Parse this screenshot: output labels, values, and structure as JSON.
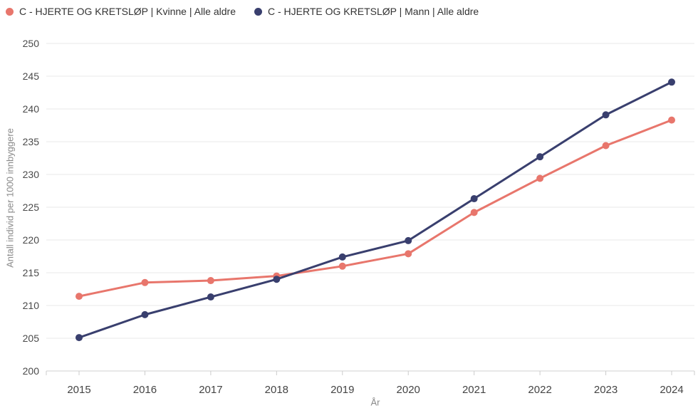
{
  "chart_data": {
    "type": "line",
    "x": [
      "2015",
      "2016",
      "2017",
      "2018",
      "2019",
      "2020",
      "2021",
      "2022",
      "2023",
      "2024"
    ],
    "xlabel": "År",
    "ylabel": "Antall individ per 1000 innbyggere",
    "ylim": [
      200,
      250
    ],
    "ytick_step": 5,
    "grid": true,
    "legend_position": "top-left",
    "series": [
      {
        "name": "C - HJERTE OG KRETSLØP | Kvinne | Alle aldre",
        "color": "#E8766C",
        "values": [
          211.4,
          213.5,
          213.8,
          214.5,
          216.0,
          217.9,
          224.2,
          229.4,
          234.4,
          238.3
        ]
      },
      {
        "name": "C - HJERTE OG KRETSLØP | Mann | Alle aldre",
        "color": "#393F6E",
        "values": [
          205.1,
          208.6,
          211.3,
          214.0,
          217.4,
          219.9,
          226.3,
          232.7,
          239.1,
          244.1
        ]
      }
    ]
  },
  "colors": {
    "background": "#FFFFFF",
    "gridline": "#E8E8E8",
    "axis_line": "#D0D0D0",
    "tick_mark": "#CCCCCC",
    "y_tick_label": "#4A4A4A",
    "x_tick_label": "#444444",
    "axis_title": "#8A8A8A",
    "legend_text": "#333333"
  }
}
